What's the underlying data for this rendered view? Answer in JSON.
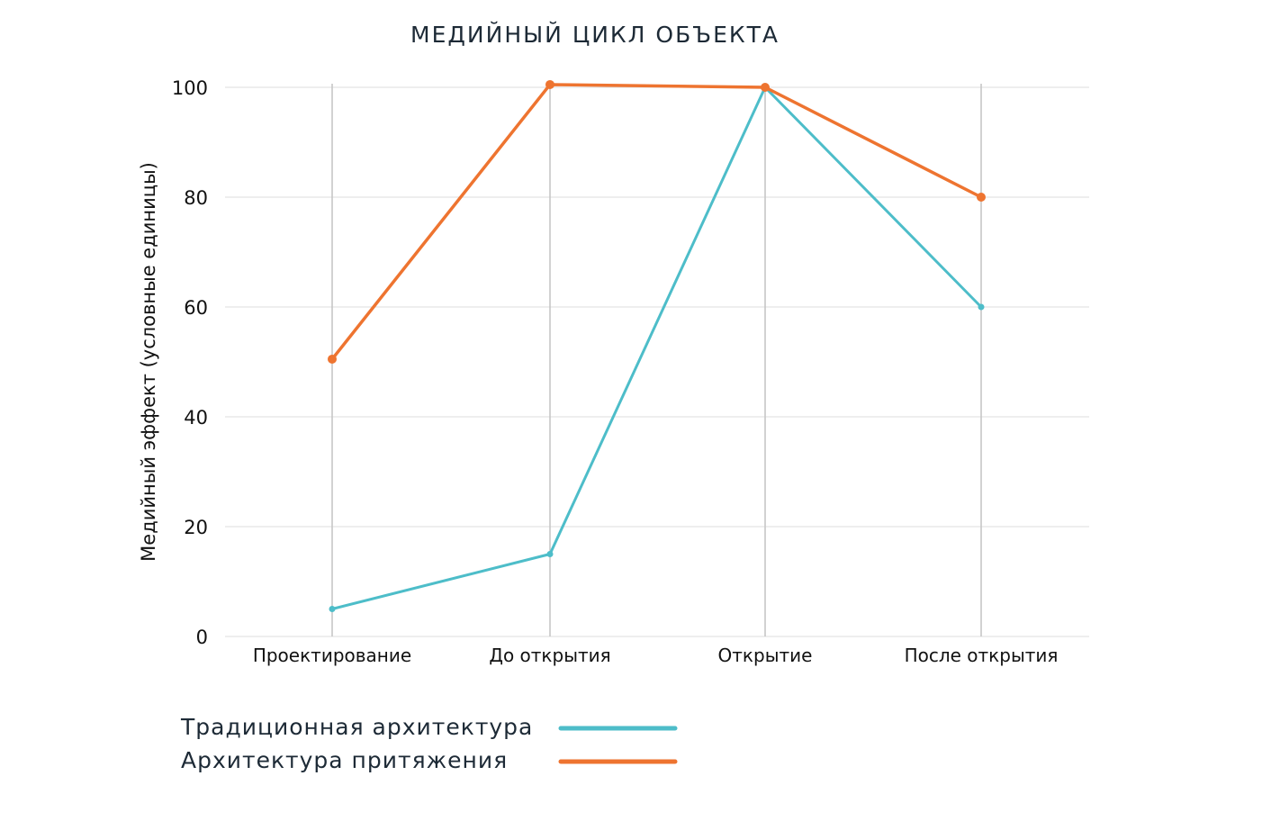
{
  "chart_data": {
    "type": "line",
    "title": "МЕДИЙНЫЙ ЦИКЛ ОБЪЕКТА",
    "xlabel": "",
    "ylabel": "Медийный эффект (условные единицы)",
    "categories": [
      "Проектирование",
      "До открытия",
      "Открытие",
      "После открытия"
    ],
    "ylim": [
      0,
      100
    ],
    "yticks": [
      0,
      20,
      40,
      60,
      80,
      100
    ],
    "grid": true,
    "legend_position": "bottom-left",
    "series": [
      {
        "name": "Традиционная архитектура",
        "color": "#4dbdc9",
        "values": [
          5,
          15,
          100,
          60
        ]
      },
      {
        "name": "Архитектура притяжения",
        "color": "#ee7430",
        "values": [
          50.5,
          100.5,
          100,
          80
        ]
      }
    ]
  }
}
